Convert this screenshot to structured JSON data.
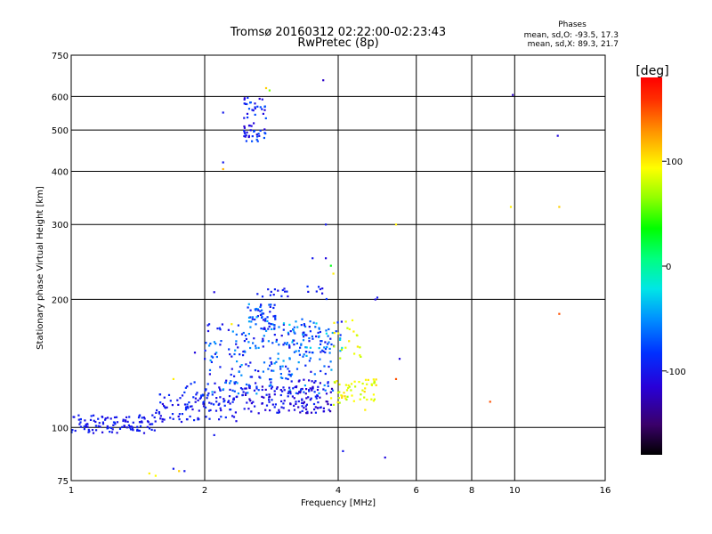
{
  "chart_data": {
    "type": "scatter",
    "title": "Tromsø 20160312 02:22:00-02:23:43",
    "subtitle": "RwPretec (8p)",
    "xlabel": "Frequency [MHz]",
    "ylabel": "Stationary phase Virtual Height [km]",
    "x_scale": "log",
    "y_scale": "log",
    "xlim": [
      1,
      16
    ],
    "ylim": [
      75,
      750
    ],
    "x_ticks": [
      1,
      2,
      4,
      6,
      8,
      10,
      16
    ],
    "x_tick_labels": [
      "1",
      "2",
      "4",
      "6",
      "8",
      "10",
      "16"
    ],
    "y_ticks": [
      75,
      100,
      200,
      300,
      400,
      500,
      600,
      750
    ],
    "y_tick_labels": [
      "75",
      "100",
      "200",
      "300",
      "400",
      "500",
      "600",
      "750"
    ],
    "grid": true,
    "colorbar": {
      "label": "[deg]",
      "range": [
        -180,
        180
      ],
      "ticks": [
        100,
        0,
        -100
      ],
      "tick_labels": [
        "100",
        "0",
        "-100"
      ]
    },
    "stats": {
      "heading": "Phases",
      "line1": "mean, sd,O:  -93.5, 17.3",
      "line2": "mean, sd,X:  89.3, 21.7"
    },
    "clusters": [
      {
        "f0": 1.0,
        "f1": 1.55,
        "h0": 97,
        "h1": 107,
        "n": 110,
        "p0": -110,
        "p1": -88
      },
      {
        "f0": 1.55,
        "f1": 2.4,
        "h0": 103,
        "h1": 120,
        "n": 90,
        "p0": -112,
        "p1": -85
      },
      {
        "f0": 2.4,
        "f1": 3.6,
        "h0": 108,
        "h1": 125,
        "n": 110,
        "p0": -125,
        "p1": -90
      },
      {
        "f0": 3.2,
        "f1": 3.9,
        "h0": 108,
        "h1": 130,
        "n": 40,
        "p0": -130,
        "p1": -95
      },
      {
        "f0": 1.8,
        "f1": 2.4,
        "h0": 113,
        "h1": 128,
        "n": 40,
        "p0": -110,
        "p1": -80
      },
      {
        "f0": 2.0,
        "f1": 3.9,
        "h0": 120,
        "h1": 175,
        "n": 240,
        "p0": -110,
        "p1": -40
      },
      {
        "f0": 2.5,
        "f1": 2.9,
        "h0": 175,
        "h1": 195,
        "n": 45,
        "p0": -105,
        "p1": -40
      },
      {
        "f0": 3.0,
        "f1": 4.1,
        "h0": 150,
        "h1": 180,
        "n": 60,
        "p0": -110,
        "p1": -20
      },
      {
        "f0": 3.8,
        "f1": 4.9,
        "h0": 113,
        "h1": 130,
        "n": 55,
        "p0": 70,
        "p1": 110
      },
      {
        "f0": 3.9,
        "f1": 4.5,
        "h0": 145,
        "h1": 180,
        "n": 20,
        "p0": 75,
        "p1": 105
      },
      {
        "f0": 2.45,
        "f1": 2.75,
        "h0": 470,
        "h1": 600,
        "n": 60,
        "p0": -120,
        "p1": -70
      },
      {
        "f0": 2.6,
        "f1": 3.1,
        "h0": 202,
        "h1": 212,
        "n": 14,
        "p0": -110,
        "p1": -90
      },
      {
        "f0": 3.4,
        "f1": 3.8,
        "h0": 200,
        "h1": 215,
        "n": 8,
        "p0": -110,
        "p1": -80
      }
    ],
    "points": [
      {
        "f": 1.5,
        "h": 78,
        "p": 100
      },
      {
        "f": 1.55,
        "h": 77,
        "p": 95
      },
      {
        "f": 1.7,
        "h": 80,
        "p": -100
      },
      {
        "f": 1.75,
        "h": 79,
        "p": 110
      },
      {
        "f": 1.8,
        "h": 79,
        "p": -100
      },
      {
        "f": 2.1,
        "h": 96,
        "p": -100
      },
      {
        "f": 2.2,
        "h": 550,
        "p": -100
      },
      {
        "f": 2.2,
        "h": 420,
        "p": -100
      },
      {
        "f": 2.2,
        "h": 405,
        "p": 120
      },
      {
        "f": 2.1,
        "h": 208,
        "p": -110
      },
      {
        "f": 2.75,
        "h": 628,
        "p": 110
      },
      {
        "f": 2.8,
        "h": 620,
        "p": 60
      },
      {
        "f": 3.7,
        "h": 655,
        "p": -120
      },
      {
        "f": 3.75,
        "h": 300,
        "p": -100
      },
      {
        "f": 3.75,
        "h": 250,
        "p": -110
      },
      {
        "f": 3.9,
        "h": 230,
        "p": 100
      },
      {
        "f": 3.85,
        "h": 240,
        "p": 30
      },
      {
        "f": 3.5,
        "h": 250,
        "p": -100
      },
      {
        "f": 4.1,
        "h": 88,
        "p": -100
      },
      {
        "f": 4.9,
        "h": 202,
        "p": -100
      },
      {
        "f": 4.85,
        "h": 200,
        "p": -110
      },
      {
        "f": 5.1,
        "h": 85,
        "p": -110
      },
      {
        "f": 5.4,
        "h": 300,
        "p": 100
      },
      {
        "f": 5.5,
        "h": 145,
        "p": -110
      },
      {
        "f": 5.4,
        "h": 130,
        "p": 150
      },
      {
        "f": 4.6,
        "h": 110,
        "p": 100
      },
      {
        "f": 8.8,
        "h": 115,
        "p": 150
      },
      {
        "f": 9.8,
        "h": 330,
        "p": 100
      },
      {
        "f": 9.9,
        "h": 605,
        "p": -120
      },
      {
        "f": 12.5,
        "h": 485,
        "p": -110
      },
      {
        "f": 12.6,
        "h": 330,
        "p": 110
      },
      {
        "f": 12.6,
        "h": 185,
        "p": 150
      },
      {
        "f": 1.7,
        "h": 130,
        "p": 100
      },
      {
        "f": 2.0,
        "h": 145,
        "p": -100
      },
      {
        "f": 2.3,
        "h": 175,
        "p": 100
      },
      {
        "f": 1.9,
        "h": 150,
        "p": -110
      }
    ]
  }
}
